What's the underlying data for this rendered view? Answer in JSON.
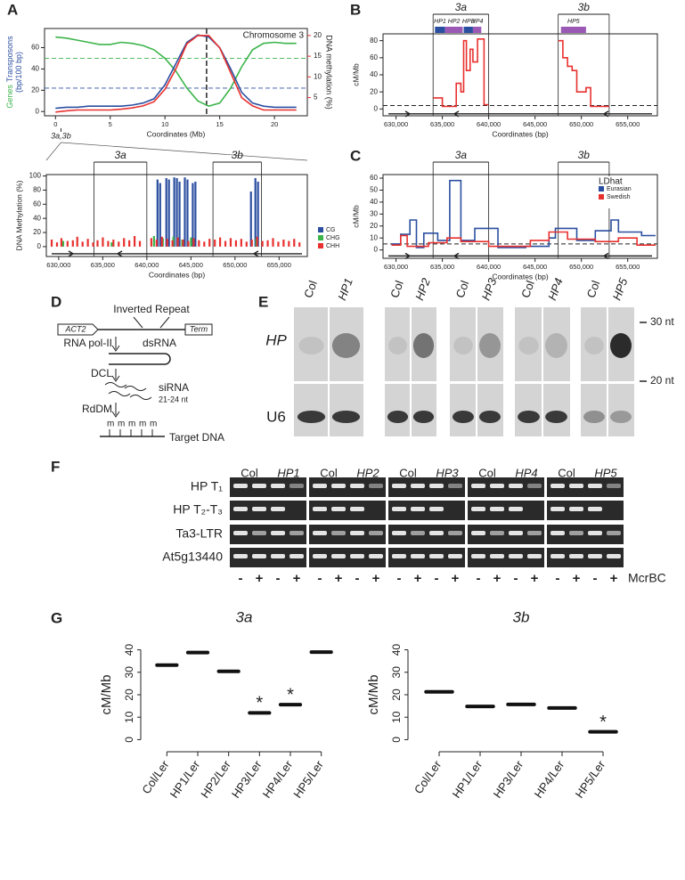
{
  "panel_labels": [
    "A",
    "B",
    "C",
    "D",
    "E",
    "F",
    "G"
  ],
  "chart_data": [
    {
      "type": "line",
      "title": "Chromosome 3",
      "xlabel": "Coordinates (Mb)",
      "ylabel": [
        [
          {
            "text": "Genes",
            "color": "#3cb44b"
          },
          {
            "text": "Transposons",
            "color": "#2b4fa0"
          }
        ],
        [
          {
            "text": "(bp/100 bp)",
            "color": "#2b4fa0"
          }
        ]
      ],
      "y2label": "DNA methylation (%)",
      "x": [
        0,
        1,
        2,
        3,
        4,
        5,
        6,
        7,
        8,
        9,
        10,
        11,
        12,
        13,
        14,
        15,
        16,
        17,
        18,
        19,
        20,
        21,
        22
      ],
      "series": [
        {
          "color": "#3cb44b",
          "values": [
            70,
            69,
            67,
            65,
            63,
            63,
            65,
            64,
            62,
            58,
            50,
            38,
            22,
            10,
            5,
            8,
            22,
            42,
            58,
            64,
            65,
            64,
            64
          ]
        },
        {
          "color": "#2b4fa0",
          "values": [
            3,
            4,
            4,
            5,
            5,
            5,
            5,
            6,
            8,
            12,
            25,
            45,
            65,
            72,
            70,
            60,
            40,
            18,
            8,
            5,
            4,
            4,
            4
          ]
        },
        {
          "color": "#e8312f",
          "axis": "y2",
          "values": [
            1.5,
            1.8,
            2,
            2,
            2,
            2,
            2.2,
            2.5,
            3,
            4,
            7,
            12,
            18,
            20,
            20,
            17,
            11,
            5,
            3,
            2,
            2,
            2,
            2
          ]
        }
      ],
      "xlim": [
        -1,
        23
      ],
      "xticks": [
        0,
        5,
        10,
        15,
        20
      ],
      "ylim": [
        -4,
        78
      ],
      "yticks": [
        0,
        20,
        40,
        60
      ],
      "y2lim": [
        0.6,
        21.7
      ],
      "y2ticks": [
        5,
        10,
        15,
        20
      ],
      "reference_lines": [
        {
          "y": 50,
          "color": "#3cb44b"
        },
        {
          "y": 22,
          "color": "#2b4fa0"
        },
        {
          "x": 13.8,
          "color": "#222222"
        }
      ],
      "annotations": [
        {
          "text": "3a,3b",
          "x": 0.5
        }
      ]
    },
    {
      "type": "bar",
      "xlabel": "Coordinates (bp)",
      "ylabel": "DNA Methylation (%)",
      "xlim": [
        628600,
        658200
      ],
      "xticks": [
        {
          "value": 630000,
          "label": "630,000"
        },
        {
          "value": 635000,
          "label": "635,000"
        },
        {
          "value": 640000,
          "label": "640,000"
        },
        {
          "value": 645000,
          "label": "645,000"
        },
        {
          "value": 650000,
          "label": "650,000"
        },
        {
          "value": 655000,
          "label": "655,000"
        }
      ],
      "ylim": [
        -14,
        102
      ],
      "yticks": [
        0,
        20,
        40,
        60,
        80,
        100
      ],
      "vlines": [
        634000,
        640000,
        647500,
        653000
      ],
      "regions": [
        {
          "label": "3a",
          "from": 634000,
          "to": 640000
        },
        {
          "label": "3b",
          "from": 647500,
          "to": 653000
        }
      ],
      "legend": "right",
      "series": [
        {
          "name": "CG",
          "color": "#2b4fa0",
          "x": [
            641200,
            641500,
            642200,
            642500,
            643100,
            643400,
            643700,
            644300,
            644600,
            645200,
            645500,
            651800,
            652300,
            652600
          ],
          "values": [
            95,
            90,
            97,
            95,
            98,
            97,
            92,
            98,
            95,
            90,
            92,
            78,
            97,
            92
          ]
        },
        {
          "name": "CHG",
          "color": "#3cb44b",
          "x": [
            630500,
            636000,
            640800,
            641800,
            643000,
            644000,
            645000,
            652400
          ],
          "values": [
            8,
            6,
            15,
            12,
            14,
            10,
            13,
            12
          ]
        },
        {
          "name": "CHH",
          "color": "#e8312f",
          "x": [
            629200,
            629800,
            630300,
            631000,
            631600,
            632100,
            632700,
            633300,
            633900,
            634400,
            635000,
            635600,
            636200,
            636800,
            637400,
            638000,
            638600,
            639200,
            640500,
            641100,
            641700,
            642300,
            642900,
            643500,
            644100,
            644700,
            645300,
            645900,
            646500,
            647100,
            647700,
            648300,
            648900,
            649500,
            650100,
            650700,
            651300,
            651900,
            652500,
            653100,
            653700,
            654300,
            654900,
            655500,
            656100,
            656700,
            657300
          ],
          "values": [
            10,
            6,
            12,
            8,
            9,
            14,
            7,
            11,
            6,
            9,
            13,
            8,
            10,
            7,
            12,
            9,
            15,
            8,
            12,
            10,
            14,
            11,
            9,
            13,
            10,
            8,
            12,
            9,
            7,
            11,
            10,
            13,
            8,
            12,
            9,
            11,
            7,
            10,
            14,
            8,
            9,
            12,
            7,
            10,
            8,
            11,
            6
          ]
        }
      ]
    },
    {
      "type": "line",
      "ylabel": "cM/Mb",
      "xlabel": "Coordinates (bp)",
      "xlim": [
        628600,
        658200
      ],
      "xticks": [
        {
          "value": 630000,
          "label": "630,000"
        },
        {
          "value": 635000,
          "label": "635,000"
        },
        {
          "value": 640000,
          "label": "640,000"
        },
        {
          "value": 645000,
          "label": "645,000"
        },
        {
          "value": 650000,
          "label": "650,000"
        },
        {
          "value": 655000,
          "label": "655,000"
        }
      ],
      "ylim": [
        -8,
        88
      ],
      "yticks": [
        0,
        20,
        40,
        60,
        80
      ],
      "vlines": [
        634000,
        640000,
        647500,
        653000
      ],
      "reference_lines": [
        {
          "y": 4,
          "color": "#222222"
        }
      ],
      "regions": [
        {
          "label": "3a",
          "from": 634000,
          "to": 640000
        },
        {
          "label": "3b",
          "from": 647500,
          "to": 653000
        }
      ],
      "hairpins": [
        {
          "label": "HP1",
          "from": 634200,
          "to": 635300,
          "color": "#2b4fa0"
        },
        {
          "label": "HP2",
          "from": 635300,
          "to": 637200,
          "color": "#9b59b6"
        },
        {
          "label": "HP3",
          "from": 637300,
          "to": 638300,
          "color": "#2b4fa0"
        },
        {
          "label": "HP4",
          "from": 638300,
          "to": 639200,
          "color": "#9b59b6"
        },
        {
          "label": "HP5",
          "from": 647800,
          "to": 650500,
          "color": "#9b59b6"
        }
      ],
      "series": [
        {
          "color": "#e8312f",
          "x": [
            634000,
            635000,
            635000,
            636500,
            636500,
            637000,
            637000,
            637300,
            637300,
            637600,
            637600,
            638000,
            638000,
            638300,
            638300,
            638800,
            638800,
            639500,
            639500,
            640000,
            643000,
            647500,
            648000,
            648000,
            648500,
            648500,
            649000,
            649000,
            649500,
            649500,
            650500,
            650500,
            651000,
            651000,
            653000
          ],
          "values": [
            13,
            13,
            3,
            3,
            30,
            30,
            20,
            20,
            80,
            80,
            45,
            45,
            70,
            70,
            55,
            55,
            82,
            82,
            5,
            5,
            null,
            80,
            80,
            60,
            60,
            50,
            50,
            45,
            45,
            20,
            20,
            25,
            25,
            3,
            3
          ]
        }
      ]
    },
    {
      "type": "line",
      "ylabel": "cM/Mb",
      "xlabel": "Coordinates (bp)",
      "xlim": [
        628600,
        658200
      ],
      "xticks": [
        {
          "value": 630000,
          "label": "630,000"
        },
        {
          "value": 635000,
          "label": "635,000"
        },
        {
          "value": 640000,
          "label": "640,000"
        },
        {
          "value": 645000,
          "label": "645,000"
        },
        {
          "value": 650000,
          "label": "650,000"
        },
        {
          "value": 655000,
          "label": "655,000"
        }
      ],
      "ylim": [
        -7,
        63
      ],
      "yticks": [
        0,
        10,
        20,
        30,
        40,
        50,
        60
      ],
      "vlines": [
        634000,
        640000,
        647500,
        653000
      ],
      "reference_lines": [
        {
          "y": 5,
          "color": "#222222"
        }
      ],
      "regions": [
        {
          "label": "3a",
          "from": 634000,
          "to": 640000
        },
        {
          "label": "3b",
          "from": 647500,
          "to": 653000
        }
      ],
      "legend": "upper right",
      "legend_title": "LDhat",
      "series": [
        {
          "name": "Eurasian",
          "color": "#2b4fa0",
          "x": [
            629500,
            630500,
            630500,
            631500,
            631500,
            632200,
            632200,
            633000,
            633000,
            634500,
            634500,
            635800,
            635800,
            637000,
            637000,
            638500,
            638500,
            641000,
            641000,
            644000,
            644000,
            646500,
            646500,
            647200,
            647200,
            649500,
            649500,
            651500,
            651500,
            653200,
            653200,
            654000,
            654000,
            656500,
            656500,
            658000
          ],
          "values": [
            5,
            5,
            13,
            13,
            25,
            25,
            2,
            2,
            14,
            14,
            8,
            8,
            58,
            58,
            8,
            8,
            18,
            18,
            2,
            2,
            3,
            3,
            10,
            10,
            18,
            18,
            8,
            8,
            16,
            16,
            25,
            25,
            15,
            15,
            12,
            12
          ]
        },
        {
          "name": "Swedish",
          "color": "#e8312f",
          "x": [
            629500,
            630500,
            630500,
            631200,
            631200,
            633500,
            633500,
            635500,
            635500,
            637000,
            637000,
            640000,
            640000,
            644500,
            644500,
            646500,
            646500,
            648500,
            648500,
            651500,
            651500,
            654000,
            654000,
            656000,
            656000,
            658000
          ],
          "values": [
            4,
            4,
            12,
            12,
            3,
            3,
            6,
            6,
            10,
            10,
            7,
            7,
            3,
            3,
            8,
            8,
            15,
            15,
            9,
            9,
            7,
            7,
            10,
            10,
            4,
            4
          ]
        }
      ]
    },
    {
      "type": "dot",
      "title": "3a",
      "ylabel": "cM/Mb",
      "categories": [
        "Col/Ler",
        "HP1/Ler",
        "HP2/Ler",
        "HP3/Ler",
        "HP4/Ler",
        "HP5/Ler"
      ],
      "values": [
        33.2,
        38.8,
        30.4,
        11.9,
        15.6,
        39.0
      ],
      "ylim": [
        -3,
        43
      ],
      "yticks": [
        0,
        10,
        20,
        30,
        40
      ],
      "annotations": [
        {
          "text": "*",
          "category": "HP3/Ler"
        },
        {
          "text": "*",
          "category": "HP4/Ler"
        }
      ]
    },
    {
      "type": "dot",
      "title": "3b",
      "ylabel": "cM/Mb",
      "categories": [
        "Col/Ler",
        "HP1/Ler",
        "HP3/Ler",
        "HP4/Ler",
        "HP5/Ler"
      ],
      "values": [
        21.3,
        14.8,
        15.7,
        14.1,
        3.5
      ],
      "ylim": [
        -3,
        43
      ],
      "yticks": [
        0,
        10,
        20,
        30,
        40
      ],
      "annotations": [
        {
          "text": "*",
          "category": "HP5/Ler"
        }
      ]
    }
  ],
  "diagram": {
    "promoter": "ACT2",
    "inverted_repeat": "Inverted Repeat",
    "terminator": "Term",
    "steps": [
      {
        "enzyme": "RNA pol-II",
        "product": "dsRNA"
      },
      {
        "enzyme": "DCL",
        "product": "siRNA",
        "note": "21-24 nt"
      },
      {
        "enzyme": "RdDM",
        "product": "Target DNA"
      }
    ],
    "methyl_marks": [
      "m",
      "m",
      "m",
      "m",
      "m"
    ]
  },
  "northern": {
    "lanes": [
      [
        "Col",
        "HP1"
      ],
      [
        "Col",
        "HP2"
      ],
      [
        "Col",
        "HP3"
      ],
      [
        "Col",
        "HP4"
      ],
      [
        "Col",
        "HP5"
      ]
    ],
    "probes": [
      "HP",
      "U6"
    ],
    "size_markers": [
      "30 nt",
      "20 nt"
    ]
  },
  "chop_pcr": {
    "groups": [
      [
        "Col",
        "HP1"
      ],
      [
        "Col",
        "HP2"
      ],
      [
        "Col",
        "HP3"
      ],
      [
        "Col",
        "HP4"
      ],
      [
        "Col",
        "HP5"
      ]
    ],
    "rows": [
      "HP T₁",
      "HP T₂-T₃",
      "Ta3-LTR",
      "At5g13440"
    ],
    "treatments": [
      "-",
      "+"
    ],
    "enzyme": "McrBC"
  }
}
